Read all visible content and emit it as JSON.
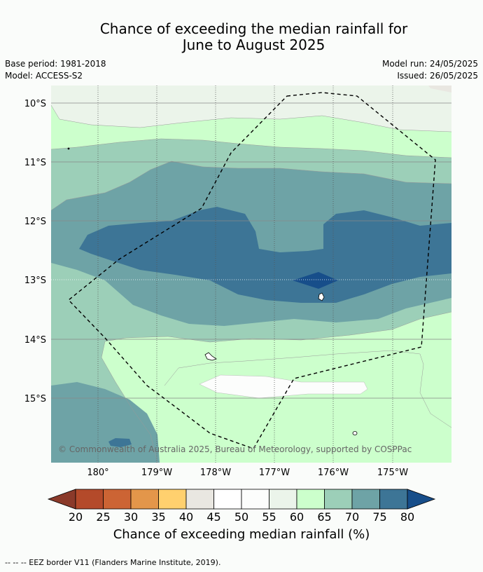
{
  "title": {
    "line1": "Chance of exceeding the median rainfall for",
    "line2": "June to August 2025"
  },
  "meta_left": {
    "base_period": "Base period: 1981-2018",
    "model": "Model: ACCESS-S2"
  },
  "meta_right": {
    "model_run": "Model run: 24/05/2025",
    "issued": "Issued: 26/05/2025"
  },
  "map": {
    "lat_labels": [
      "10°S",
      "11°S",
      "12°S",
      "13°S",
      "14°S",
      "15°S"
    ],
    "lon_labels": [
      "180°",
      "179°W",
      "178°W",
      "177°W",
      "176°W",
      "175°W"
    ],
    "copyright": "© Commonwealth of Australia 2025, Bureau of Meteorology, supported by COSPPac"
  },
  "colorbar": {
    "ticks": [
      "20",
      "25",
      "30",
      "35",
      "40",
      "45",
      "50",
      "55",
      "60",
      "65",
      "70",
      "75",
      "80"
    ],
    "colors": [
      "#8b3a2a",
      "#b44a2a",
      "#cc6434",
      "#e3964a",
      "#ffd06e",
      "#e9e7e1",
      "#ffffff",
      "#fcfdfc",
      "#ebf4ea",
      "#ccffcc",
      "#9ccfb8",
      "#6ea3a6",
      "#3d7596",
      "#174e8a"
    ],
    "label": "Chance of exceeding median rainfall (%)"
  },
  "footer": "--  --  -- EEZ border V11 (Flanders Marine Institute, 2019)."
}
